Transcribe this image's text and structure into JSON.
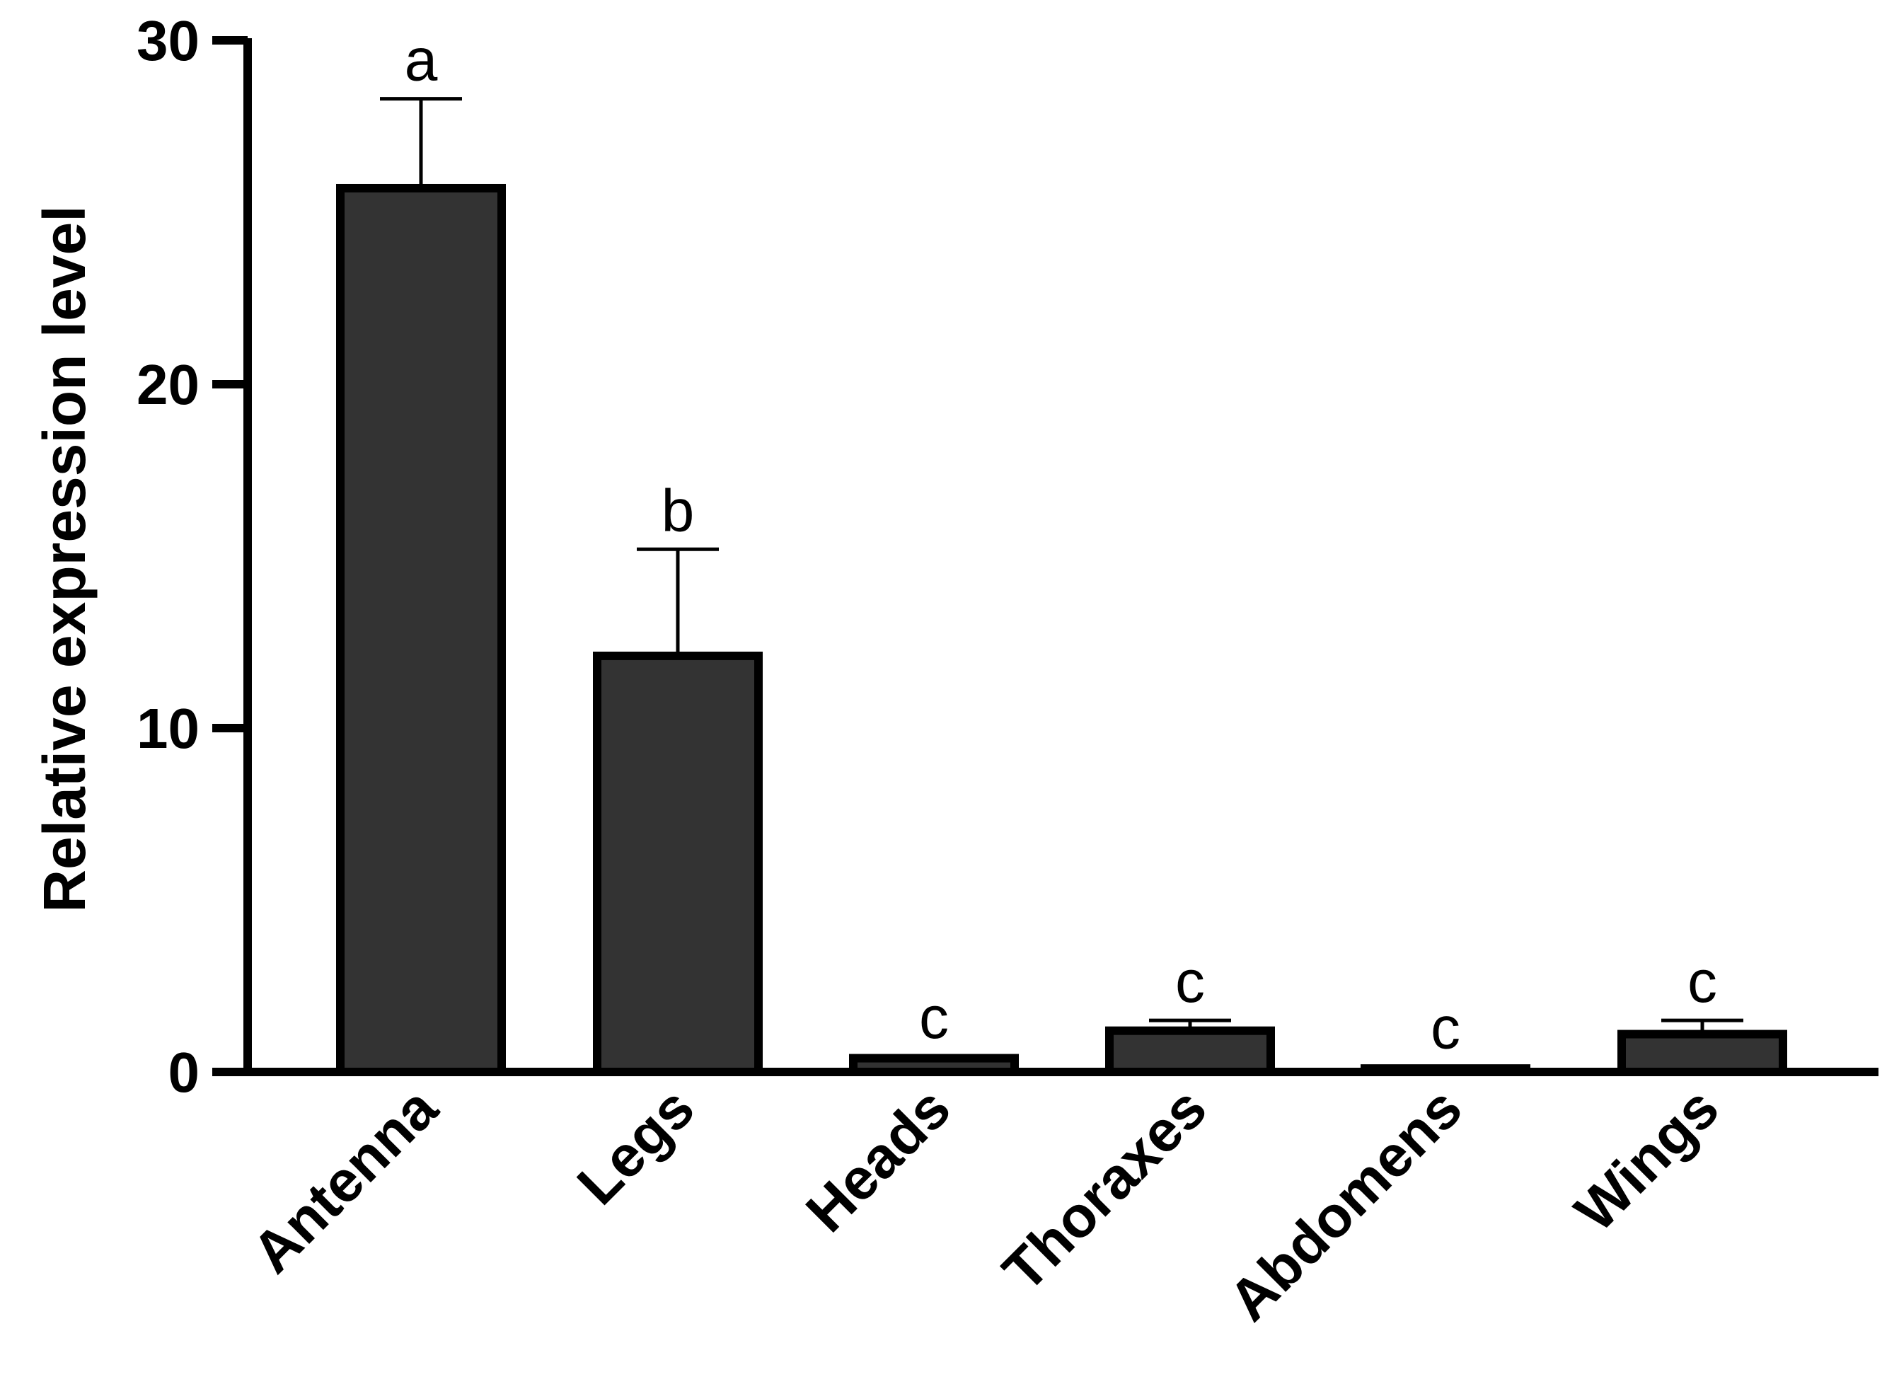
{
  "chart_data": {
    "type": "bar",
    "title": "",
    "xlabel": "",
    "ylabel": "Relative expression level",
    "ylim": [
      0,
      30
    ],
    "yticks": [
      0,
      10,
      20,
      30
    ],
    "grid": false,
    "legend": "none",
    "categories": [
      "Antenna",
      "Legs",
      "Heads",
      "Thoraxes",
      "Abdomens",
      "Wings"
    ],
    "values": [
      25.7,
      12.1,
      0.4,
      1.2,
      0.1,
      1.1
    ],
    "errors": [
      2.6,
      3.1,
      0.05,
      0.3,
      0.05,
      0.4
    ],
    "annotations": [
      "a",
      "b",
      "c",
      "c",
      "c",
      "c"
    ],
    "colors": {
      "bar_fill": "#333333",
      "bar_edge": "#000000",
      "axis": "#000000"
    }
  }
}
